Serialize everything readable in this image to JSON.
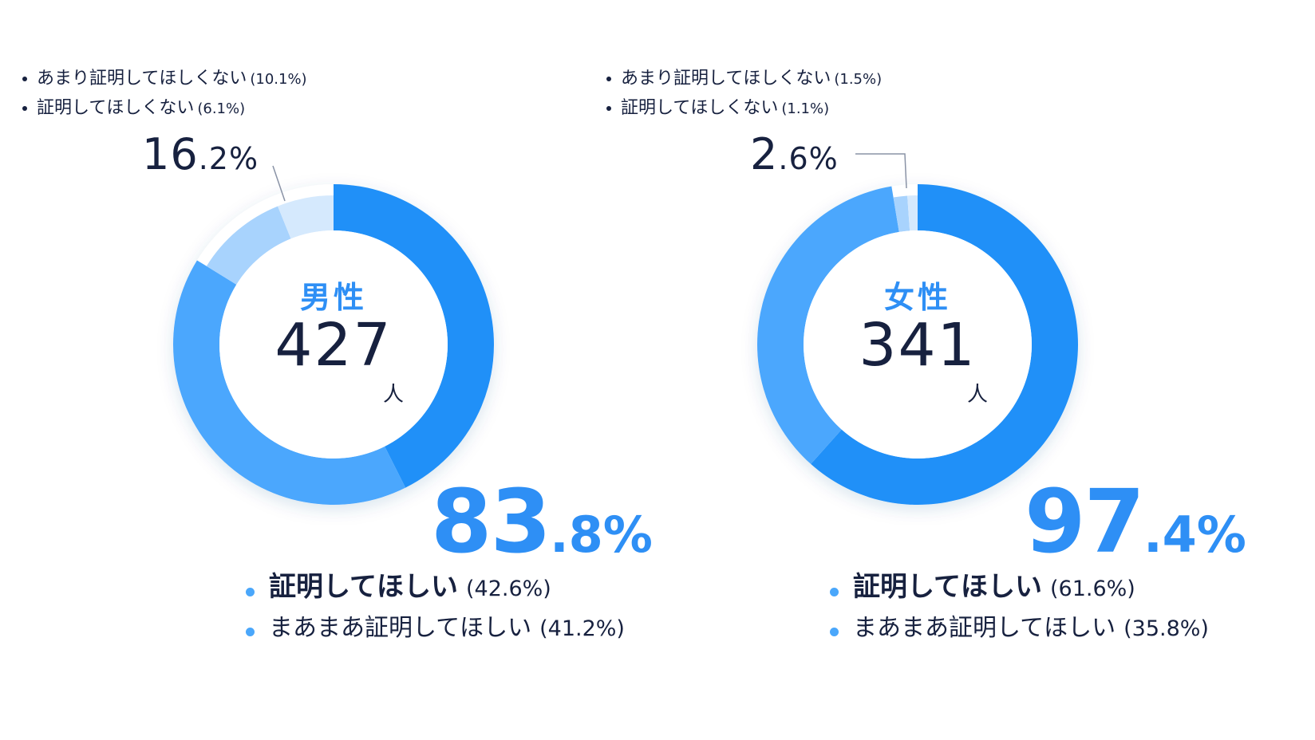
{
  "chart_data": [
    {
      "type": "pie",
      "center_label": "男性",
      "count": "427",
      "count_unit": "人",
      "positive_total": "83.8%",
      "negative_total": "16.2%",
      "series": [
        {
          "name": "証明してほしい",
          "value": 42.6,
          "label": "(42.6%)",
          "color": "#2090f8"
        },
        {
          "name": "まあまあ証明してほしい",
          "value": 41.2,
          "label": "(41.2%)",
          "color": "#4ba7fd"
        },
        {
          "name": "あまり証明してほしくない",
          "value": 10.1,
          "label": "(10.1%)",
          "color": "#a8d3fd"
        },
        {
          "name": "証明してほしくない",
          "value": 6.1,
          "label": "(6.1%)",
          "color": "#d5e9fd"
        }
      ]
    },
    {
      "type": "pie",
      "center_label": "女性",
      "count": "341",
      "count_unit": "人",
      "positive_total": "97.4%",
      "negative_total": "2.6%",
      "series": [
        {
          "name": "証明してほしい",
          "value": 61.6,
          "label": "(61.6%)",
          "color": "#2090f8"
        },
        {
          "name": "まあまあ証明してほしい",
          "value": 35.8,
          "label": "(35.8%)",
          "color": "#4ba7fd"
        },
        {
          "name": "あまり証明してほしくない",
          "value": 1.5,
          "label": "(1.5%)",
          "color": "#a8d3fd"
        },
        {
          "name": "証明してほしくない",
          "value": 1.1,
          "label": "(1.1%)",
          "color": "#d5e9fd"
        }
      ]
    }
  ]
}
